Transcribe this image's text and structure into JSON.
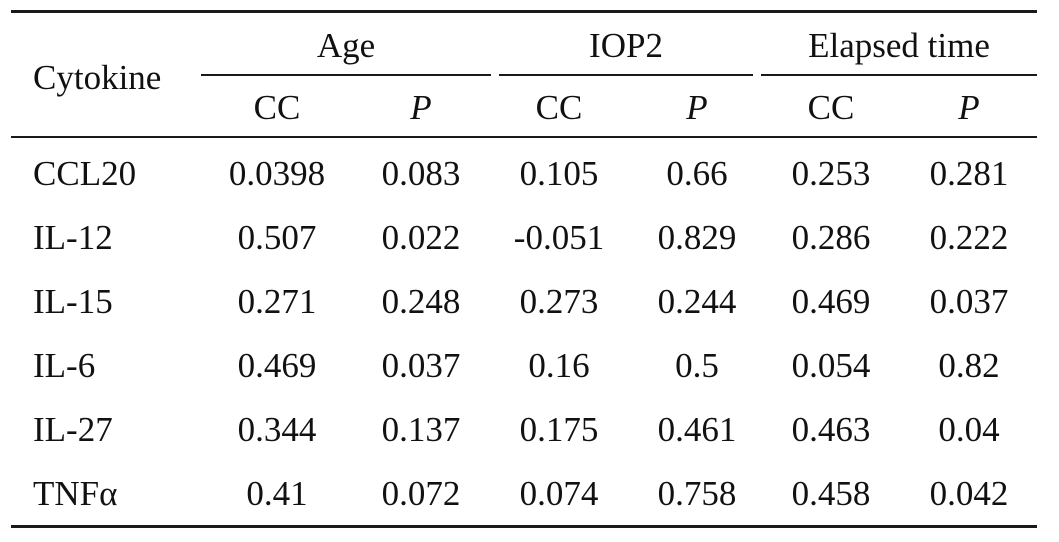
{
  "table": {
    "header": {
      "row_label": "Cytokine",
      "groups": [
        {
          "label": "Age",
          "sub": [
            "CC",
            "P"
          ]
        },
        {
          "label": "IOP2",
          "sub": [
            "CC",
            "P"
          ]
        },
        {
          "label": "Elapsed time",
          "sub": [
            "CC",
            "P"
          ]
        }
      ]
    },
    "rows": [
      {
        "name": "CCL20",
        "values": [
          "0.0398",
          "0.083",
          "0.105",
          "0.66",
          "0.253",
          "0.281"
        ]
      },
      {
        "name": "IL-12",
        "values": [
          "0.507",
          "0.022",
          "-0.051",
          "0.829",
          "0.286",
          "0.222"
        ]
      },
      {
        "name": "IL-15",
        "values": [
          "0.271",
          "0.248",
          "0.273",
          "0.244",
          "0.469",
          "0.037"
        ]
      },
      {
        "name": "IL-6",
        "values": [
          "0.469",
          "0.037",
          "0.16",
          "0.5",
          "0.054",
          "0.82"
        ]
      },
      {
        "name": "IL-27",
        "values": [
          "0.344",
          "0.137",
          "0.175",
          "0.461",
          "0.463",
          "0.04"
        ]
      },
      {
        "name": "TNFα",
        "values": [
          "0.41",
          "0.072",
          "0.074",
          "0.758",
          "0.458",
          "0.042"
        ]
      }
    ]
  }
}
